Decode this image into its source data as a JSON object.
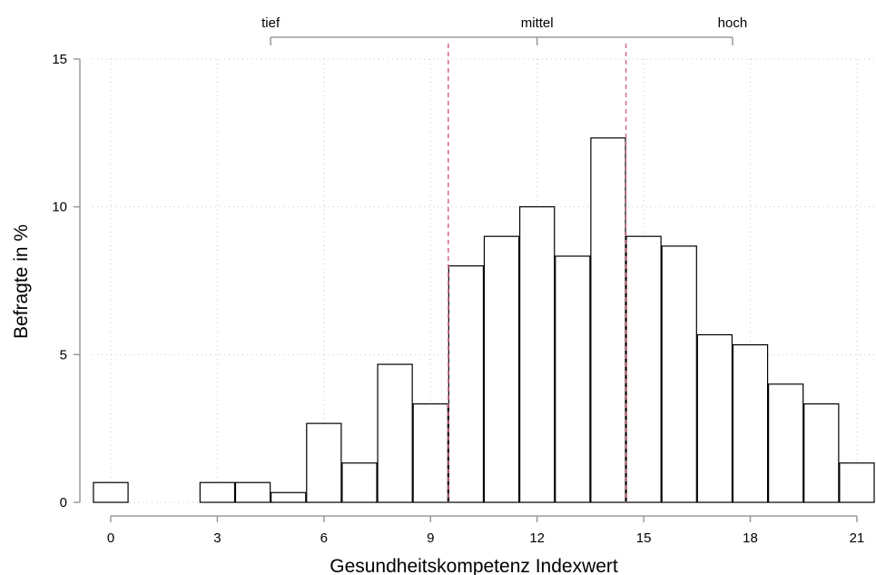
{
  "chart_data": {
    "type": "bar",
    "title": "",
    "xlabel": "Gesundheitskompetenz Indexwert",
    "ylabel": "Befragte in %",
    "x": [
      0,
      1,
      2,
      3,
      4,
      5,
      6,
      7,
      8,
      9,
      10,
      11,
      12,
      13,
      14,
      15,
      16,
      17,
      18,
      19,
      20,
      21
    ],
    "values": [
      0.67,
      0,
      0,
      0.67,
      0.67,
      0.33,
      2.67,
      1.33,
      4.67,
      3.33,
      8.0,
      9.0,
      10.0,
      8.33,
      12.33,
      9.0,
      8.67,
      5.67,
      5.33,
      4.0,
      3.33,
      1.33
    ],
    "xlim": [
      -0.5,
      21.5
    ],
    "ylim": [
      0,
      15
    ],
    "x_ticks": [
      "0",
      "3",
      "6",
      "9",
      "12",
      "15",
      "18",
      "21"
    ],
    "y_ticks": [
      "0",
      "5",
      "10",
      "15"
    ],
    "grid": true,
    "reference_lines": [
      9.5,
      14.5
    ],
    "reference_line_color": "#d9687a",
    "bar_fill": "#ffffff",
    "bar_stroke": "#000000",
    "bands": {
      "labels": [
        "tief",
        "mittel",
        "hoch"
      ],
      "label_positions": [
        4.5,
        12,
        17.5
      ],
      "bracket_range": [
        4.5,
        17.5
      ],
      "mid_tick": 12
    }
  }
}
